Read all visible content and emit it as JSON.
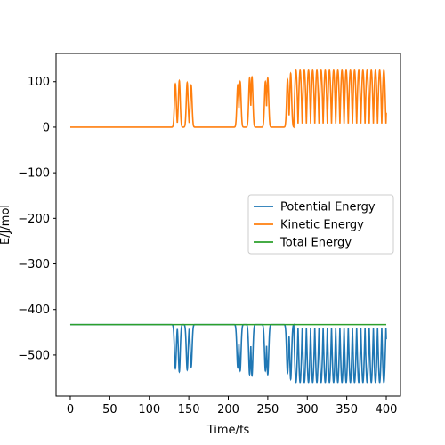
{
  "chart_data": {
    "type": "line",
    "title": "",
    "xlabel": "Time/fs",
    "ylabel": "E/J/mol",
    "xlim": [
      -18,
      418
    ],
    "ylim": [
      -590,
      162
    ],
    "xticks": [
      0,
      50,
      100,
      150,
      200,
      250,
      300,
      350,
      400
    ],
    "yticks": [
      -500,
      -400,
      -300,
      -200,
      -100,
      0,
      100
    ],
    "grid": false,
    "legend_position": "center-right",
    "series": [
      {
        "name": "Potential Energy",
        "color": "#1f77b4",
        "baseline": -433,
        "amplitude": -560
      },
      {
        "name": "Kinetic Energy",
        "color": "#ff7f0e",
        "baseline": 0,
        "amplitude": 125
      },
      {
        "name": "Total Energy",
        "color": "#2ca02c",
        "value": -433
      }
    ],
    "oscillation_events": [
      {
        "time": 133,
        "peak": 95
      },
      {
        "time": 138,
        "peak": 102
      },
      {
        "time": 148,
        "peak": 98
      },
      {
        "time": 153,
        "peak": 92
      },
      {
        "time": 212,
        "peak": 93
      },
      {
        "time": 215,
        "peak": 100
      },
      {
        "time": 227,
        "peak": 108
      },
      {
        "time": 230,
        "peak": 110
      },
      {
        "time": 247,
        "peak": 100
      },
      {
        "time": 250,
        "peak": 108
      },
      {
        "time": 275,
        "peak": 105
      },
      {
        "time": 279,
        "peak": 118
      }
    ],
    "continuous_oscillation": {
      "start": 283,
      "end": 400,
      "period": 5.3,
      "peak": 125
    }
  }
}
